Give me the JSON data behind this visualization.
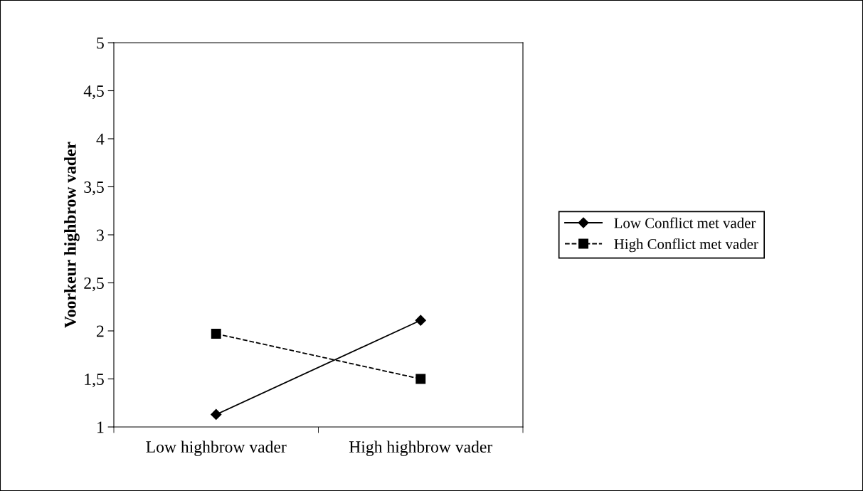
{
  "chart_data": {
    "type": "line",
    "ylabel": "Voorkeur highbrow vader",
    "categories": [
      "Low highbrow vader",
      "High highbrow vader"
    ],
    "series": [
      {
        "name": "Low Conflict met vader",
        "color": "#000000",
        "values": [
          1.13,
          2.11
        ],
        "marker": "diamond",
        "line_style": "solid"
      },
      {
        "name": "High Conflict met vader",
        "color": "#000000",
        "values": [
          1.97,
          1.5
        ],
        "marker": "square",
        "line_style": "dashed"
      }
    ],
    "ylim": [
      1,
      5
    ],
    "yticks": [
      1,
      {
        "value": 1.5,
        "label": "1,5"
      },
      2,
      {
        "value": 2.5,
        "label": "2,5"
      },
      3,
      {
        "value": 3.5,
        "label": "3,5"
      },
      4,
      {
        "value": 4.5,
        "label": "4,5"
      },
      5
    ],
    "grid": false,
    "legend": "right"
  }
}
